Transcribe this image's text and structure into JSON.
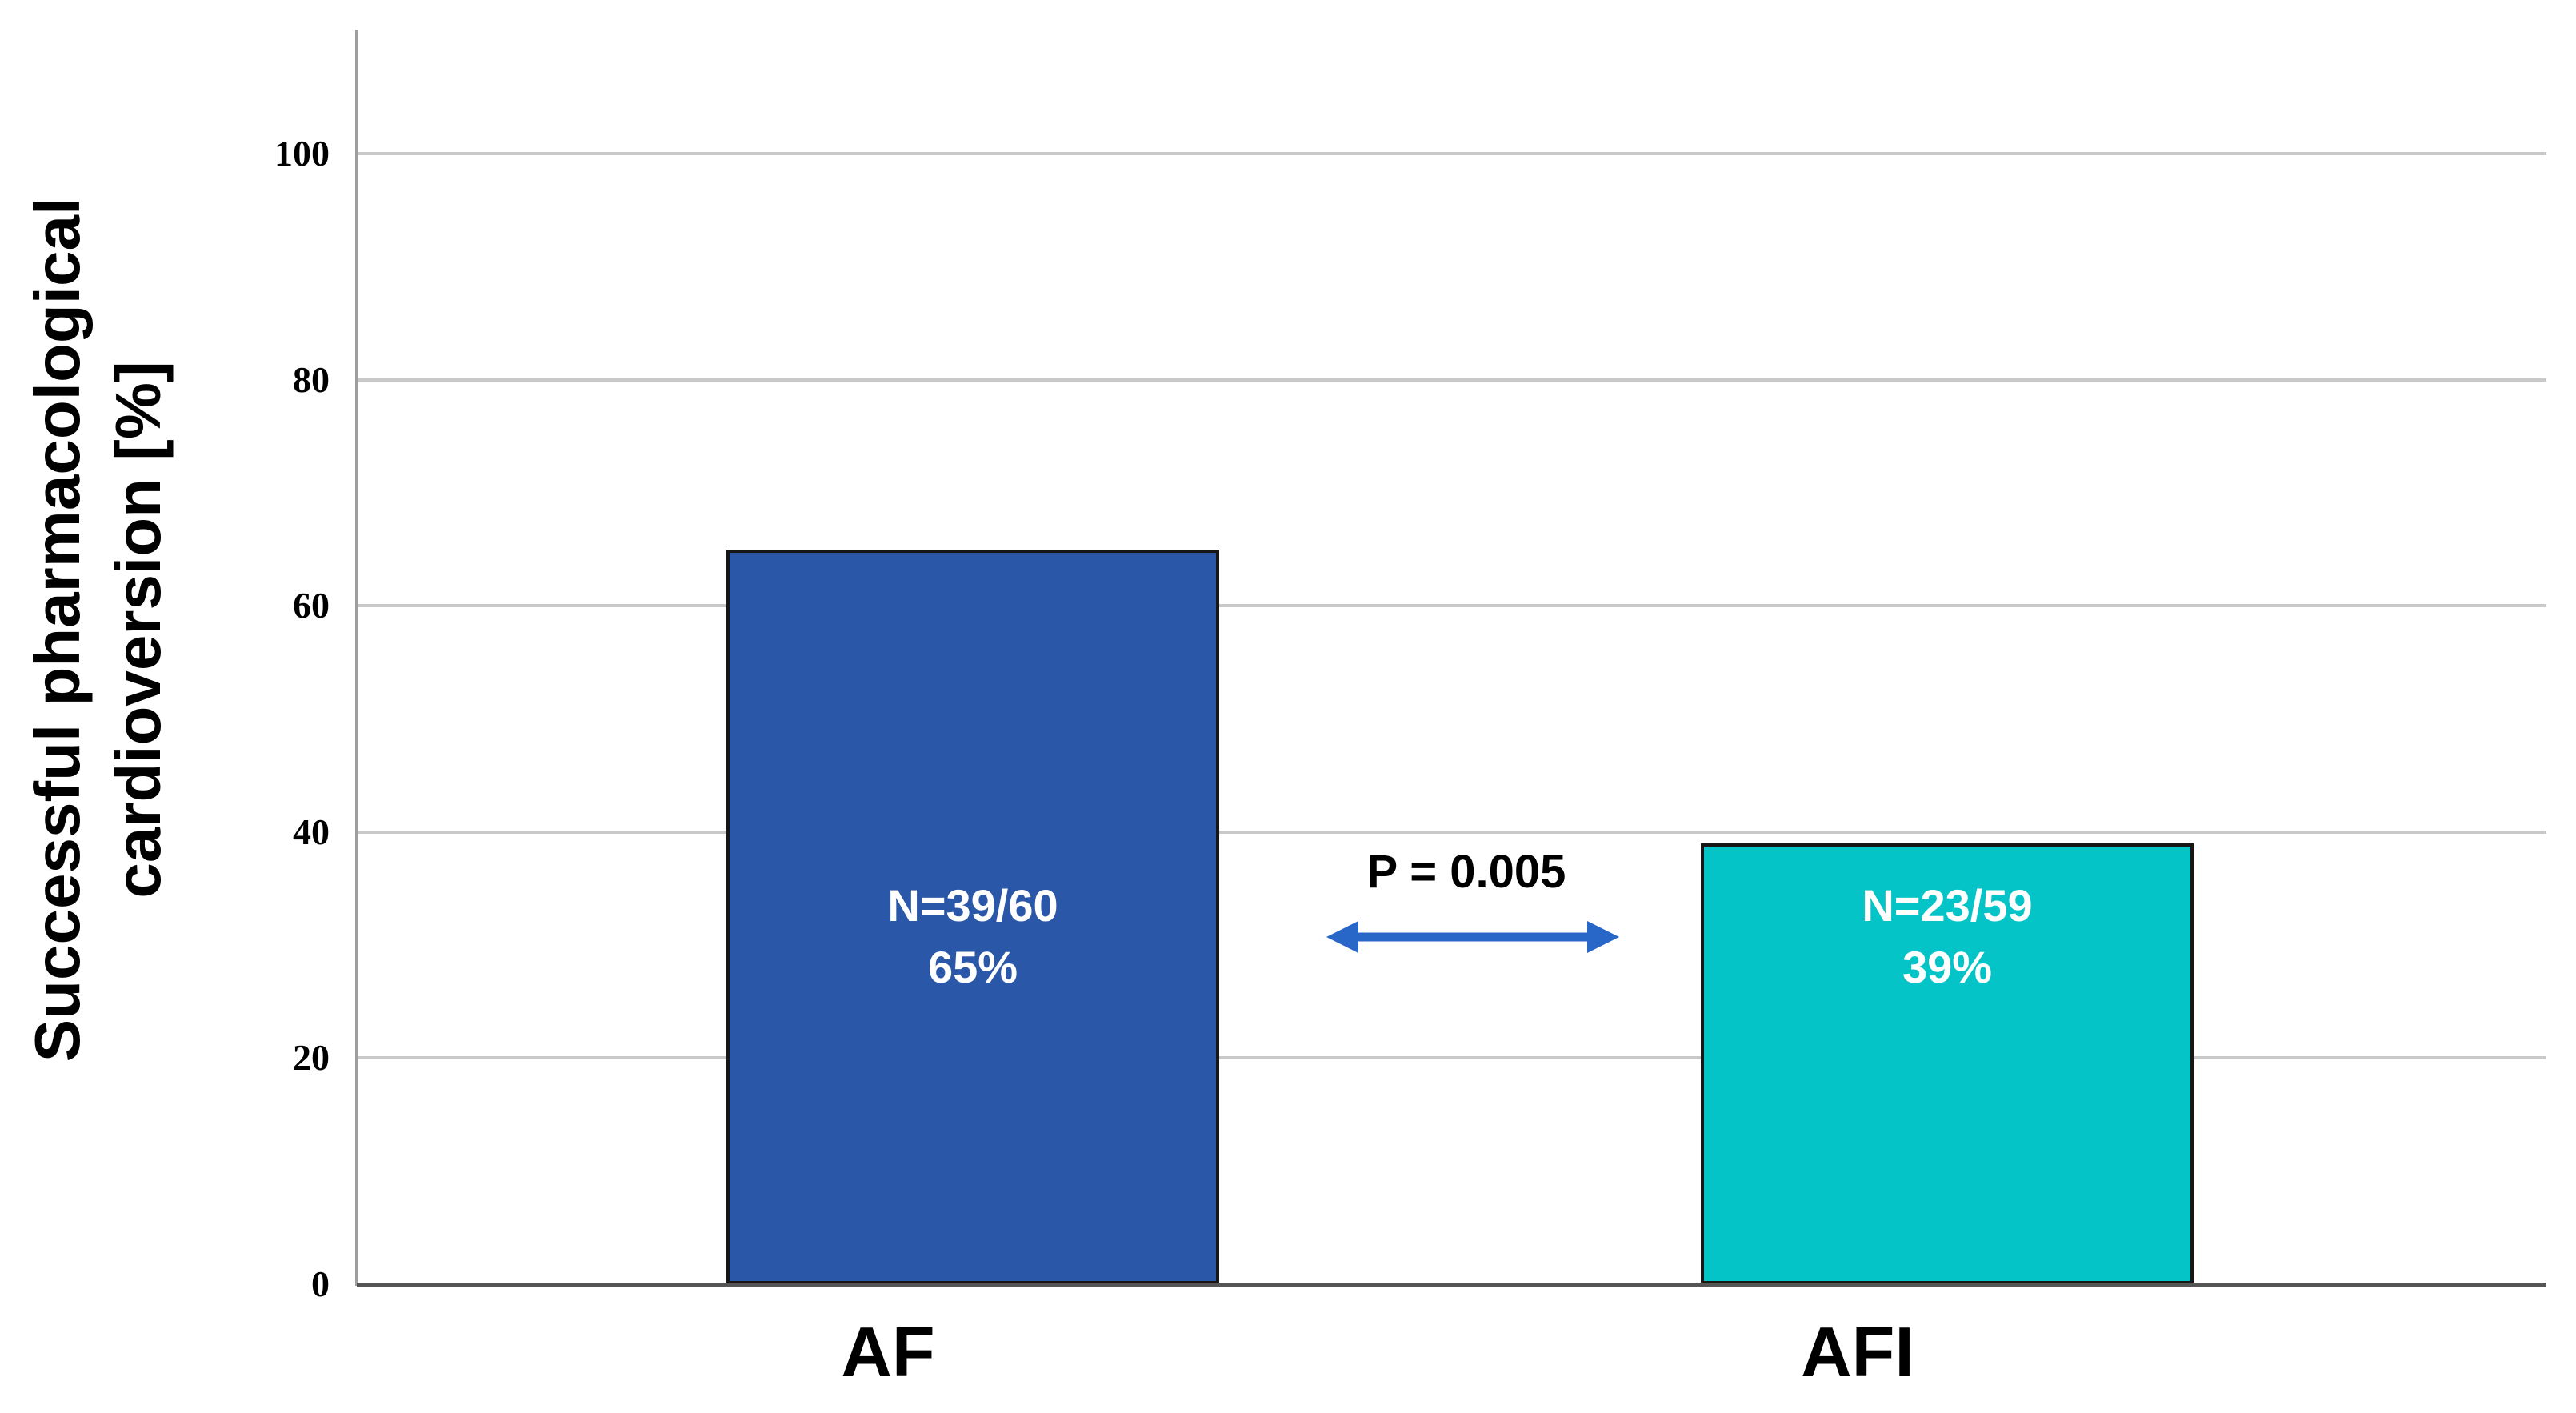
{
  "chart_data": {
    "type": "bar",
    "title": "",
    "ylabel": "Successful pharmacological cardioversion [%]",
    "ylabel_lines": [
      "Successful pharmacological",
      "cardioversion [%]"
    ],
    "xlabel": "",
    "ylim": [
      0,
      111
    ],
    "yticks": [
      0,
      20,
      40,
      60,
      80,
      100
    ],
    "grid": "horizontal-only",
    "legend": "none",
    "categories": [
      "AF",
      "AFI"
    ],
    "series": [
      {
        "name": "Successful pharmacological cardioversion",
        "values": [
          65,
          39
        ]
      }
    ],
    "bars": [
      {
        "category": "AF",
        "value": 65,
        "n_label": "N=39/60",
        "pct_label": "65%",
        "color": "#2a57a8"
      },
      {
        "category": "AFI",
        "value": 39,
        "n_label": "N=23/59",
        "pct_label": "39%",
        "color": "#04c4c8"
      }
    ],
    "annotation": {
      "text": "P = 0.005",
      "arrow_style": "double-headed",
      "arrow_color": "#2866c8"
    },
    "colors": {
      "bar_border": "#161616",
      "gridline": "#c9c9c9",
      "y_axis_line": "#9e9e9e",
      "x_axis_line": "#555555",
      "bar_label_text": "#ffffff",
      "text": "#000000"
    }
  }
}
